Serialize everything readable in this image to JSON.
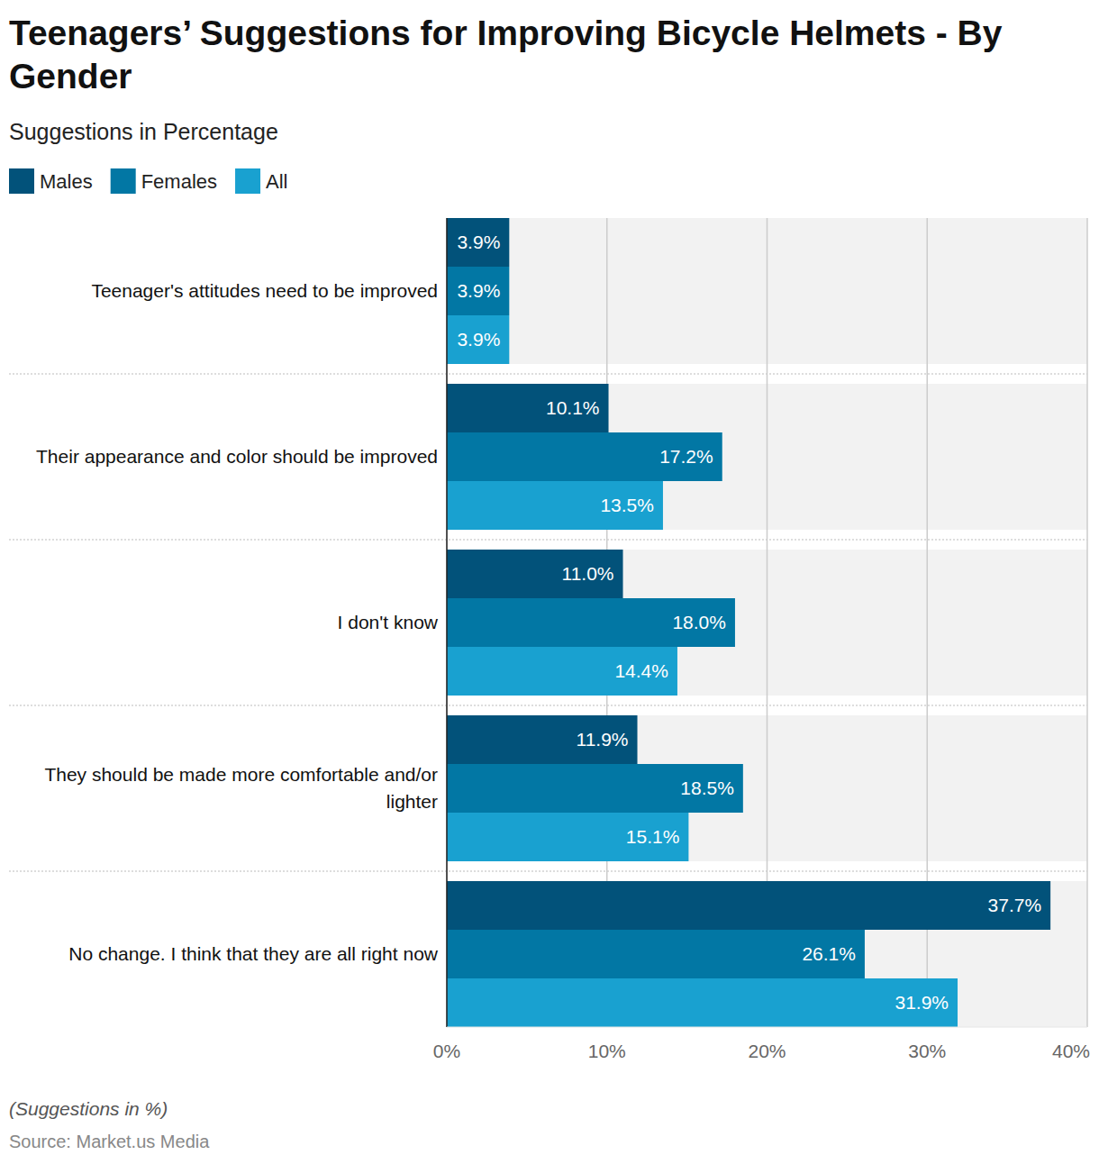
{
  "chart_data": {
    "type": "bar",
    "orientation": "horizontal",
    "title": "Teenagers’ Suggestions for Improving Bicycle Helmets - By Gender",
    "subtitle": "Suggestions in Percentage",
    "caption": "(Suggestions in %)",
    "source": "Source: Market.us Media",
    "categories": [
      "Teenager's attitudes need to be improved",
      "Their appearance and color should be improved",
      "I don't know",
      "They should be made more comfortable and/or lighter",
      "No change. I think that they are all right now"
    ],
    "series": [
      {
        "name": "Males",
        "color": "#02527a",
        "values": [
          3.9,
          10.1,
          11.0,
          11.9,
          37.7
        ],
        "value_labels": [
          "3.9%",
          "10.1%",
          "11.0%",
          "11.9%",
          "37.7%"
        ]
      },
      {
        "name": "Females",
        "color": "#0277a4",
        "values": [
          3.9,
          17.2,
          18.0,
          18.5,
          26.1
        ],
        "value_labels": [
          "3.9%",
          "17.2%",
          "18.0%",
          "18.5%",
          "26.1%"
        ]
      },
      {
        "name": "All",
        "color": "#19a1d0",
        "values": [
          3.9,
          13.5,
          14.4,
          15.1,
          31.9
        ],
        "value_labels": [
          "3.9%",
          "13.5%",
          "14.4%",
          "15.1%",
          "31.9%"
        ]
      }
    ],
    "xlim": [
      0,
      40
    ],
    "xticks": [
      {
        "value": 0,
        "label": "0%"
      },
      {
        "value": 10,
        "label": "10%"
      },
      {
        "value": 20,
        "label": "20%"
      },
      {
        "value": 30,
        "label": "30%"
      },
      {
        "value": 40,
        "label": "40%"
      }
    ],
    "grid": true,
    "legend": "top-left",
    "data_labels": true
  }
}
